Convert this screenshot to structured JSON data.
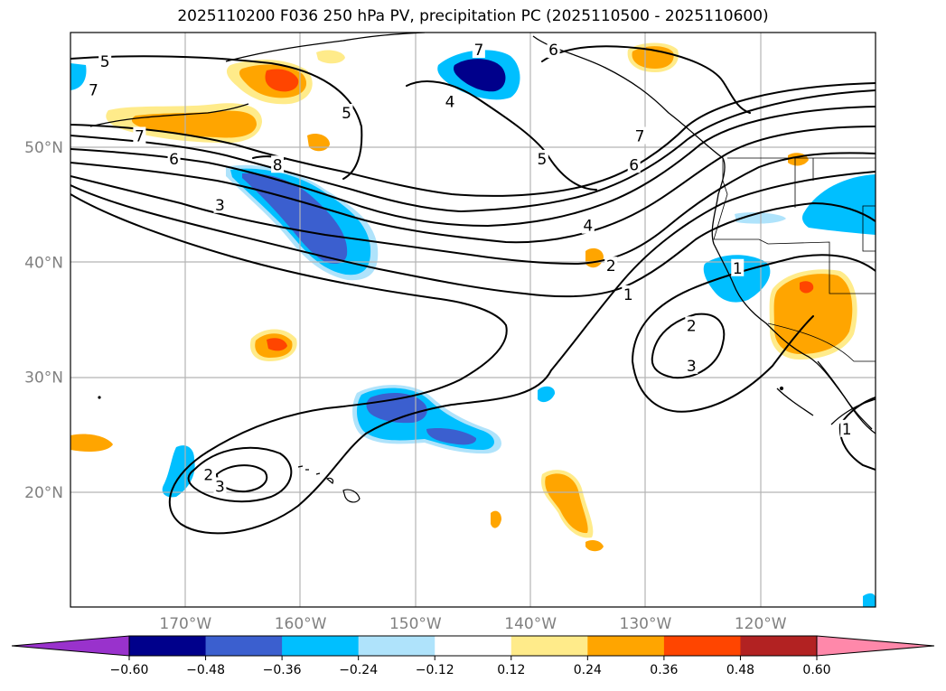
{
  "title": "2025110200 F036 250 hPa PV, precipitation PC (2025110500 - 2025110600)",
  "map": {
    "lon_range": [
      -180,
      -110
    ],
    "lat_range": [
      10,
      60
    ],
    "lon_ticks": [
      {
        "lon": -170,
        "label": "170°W"
      },
      {
        "lon": -160,
        "label": "160°W"
      },
      {
        "lon": -150,
        "label": "150°W"
      },
      {
        "lon": -140,
        "label": "140°W"
      },
      {
        "lon": -130,
        "label": "130°W"
      },
      {
        "lon": -120,
        "label": "120°W"
      }
    ],
    "lat_ticks": [
      {
        "lat": 20,
        "label": "20°N"
      },
      {
        "lat": 30,
        "label": "30°N"
      },
      {
        "lat": 40,
        "label": "40°N"
      },
      {
        "lat": 50,
        "label": "50°N"
      }
    ],
    "grid": true
  },
  "colorbar": {
    "ticks": [
      "−0.60",
      "−0.48",
      "−0.36",
      "−0.24",
      "−0.12",
      "0.12",
      "0.24",
      "0.36",
      "0.48",
      "0.60"
    ],
    "colors": [
      "#9932cc",
      "#00008b",
      "#3b5fcf",
      "#00bfff",
      "#afe3fb",
      "#ffffff",
      "#ffeb8a",
      "#ffa500",
      "#ff4500",
      "#b22222",
      "#ff88aa"
    ],
    "extend": "both"
  },
  "contour_labels": [
    {
      "text": "5",
      "lon": -177,
      "lat": 57.5
    },
    {
      "text": "7",
      "lon": -178,
      "lat": 55
    },
    {
      "text": "7",
      "lon": -174,
      "lat": 51
    },
    {
      "text": "6",
      "lon": -171,
      "lat": 49
    },
    {
      "text": "8",
      "lon": -162,
      "lat": 48.5
    },
    {
      "text": "3",
      "lon": -167,
      "lat": 45
    },
    {
      "text": "5",
      "lon": -156,
      "lat": 53
    },
    {
      "text": "4",
      "lon": -147,
      "lat": 54
    },
    {
      "text": "7",
      "lon": -144.5,
      "lat": 58.5
    },
    {
      "text": "6",
      "lon": -138,
      "lat": 58.5
    },
    {
      "text": "5",
      "lon": -139,
      "lat": 49
    },
    {
      "text": "4",
      "lon": -135,
      "lat": 43.2
    },
    {
      "text": "2",
      "lon": -133,
      "lat": 39.7
    },
    {
      "text": "1",
      "lon": -131.5,
      "lat": 37.2
    },
    {
      "text": "7",
      "lon": -130.5,
      "lat": 51
    },
    {
      "text": "6",
      "lon": -131,
      "lat": 48.5
    },
    {
      "text": "1",
      "lon": -122,
      "lat": 39.5
    },
    {
      "text": "2",
      "lon": -126,
      "lat": 34.5
    },
    {
      "text": "3",
      "lon": -126,
      "lat": 31
    },
    {
      "text": "2",
      "lon": -168,
      "lat": 21.5
    },
    {
      "text": "3",
      "lon": -167,
      "lat": 20.5
    },
    {
      "text": "1",
      "lon": -112.5,
      "lat": 25.5
    }
  ]
}
